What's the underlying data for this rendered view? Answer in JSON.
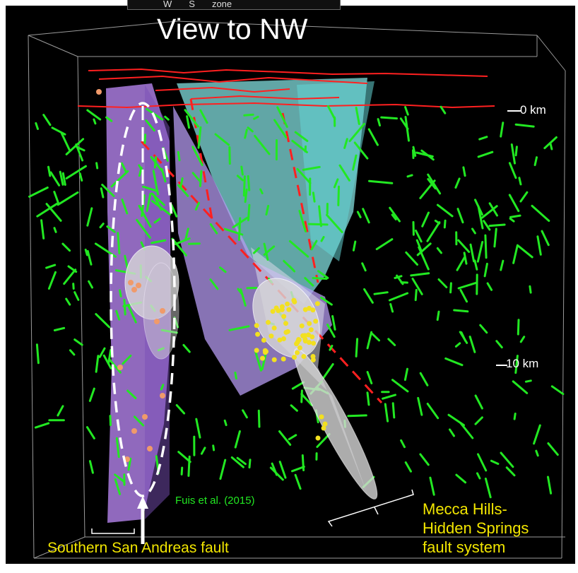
{
  "figure": {
    "view_title": "View to NW",
    "top_labels": [
      "W",
      "S",
      "zone"
    ],
    "depth_labels": [
      "0 km",
      "10 km"
    ],
    "citation": "Fuis et al. (2015)",
    "label_left": "Southern San Andreas fault",
    "label_right_lines": [
      "Mecca Hills-",
      "Hidden Springs",
      "fault system"
    ]
  },
  "colors": {
    "background": "#000000",
    "fault_purple": "#b48ce6",
    "fault_cyan": "#7fe6e6",
    "surface_traces": "#ff2020",
    "focal_mechanisms": "#22e822",
    "label_yellow": "#f2e600",
    "earthquakes_orange": "#f09a6a",
    "earthquakes_yellow": "#f2e020"
  }
}
